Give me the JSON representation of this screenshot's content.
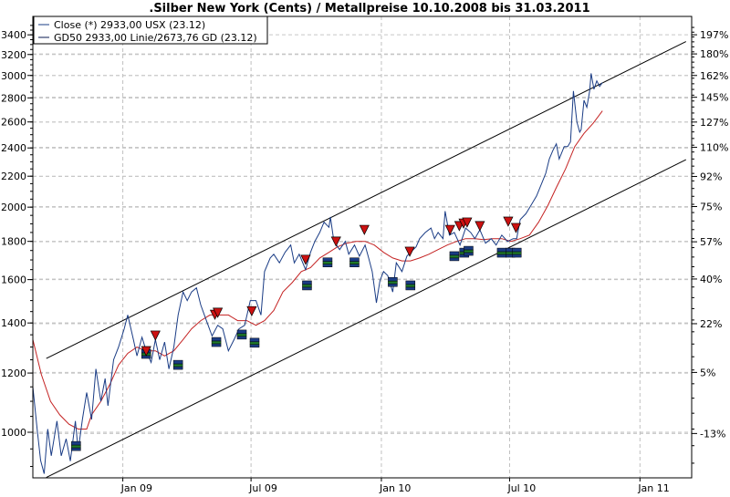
{
  "chart_data": {
    "type": "line",
    "title": ".Silber New York (Cents) / Metallpreise 10.10.2008 bis 31.03.2011",
    "x_unit": "days since 2008-12-11",
    "xlim": [
      -106,
      824
    ],
    "y_scale": "log",
    "ylim": [
      850,
      3550
    ],
    "grid": true,
    "legend_position": "top-left",
    "legend": [
      "Close (*) 2933,00 USX (23.12)",
      "GD50 2933,00 Linie/2673,76 GD (23.12)"
    ],
    "x_ticks": [
      {
        "x": 21,
        "label": "Jan 09"
      },
      {
        "x": 202,
        "label": "Jul 09"
      },
      {
        "x": 386,
        "label": "Jan 10"
      },
      {
        "x": 567,
        "label": "Jul 10"
      },
      {
        "x": 751,
        "label": "Jan 11"
      }
    ],
    "y_ticks": [
      1000,
      1200,
      1400,
      1600,
      1800,
      2000,
      2200,
      2400,
      2600,
      2800,
      3000,
      3200,
      3400
    ],
    "y_tick_labels": [
      "1000",
      "1200",
      "1400",
      "1600",
      "1800",
      "2000",
      "2200",
      "2400",
      "2600",
      "2800",
      "3000",
      "3200",
      "3400"
    ],
    "percent_base": 1145,
    "percent_ticks": [
      -13,
      5,
      22,
      40,
      57,
      75,
      92,
      110,
      127,
      145,
      162,
      180,
      197
    ],
    "percent_labels": [
      "-13%",
      "5%",
      "22%",
      "40%",
      "57%",
      "75%",
      "92%",
      "110%",
      "127%",
      "145%",
      "162%",
      "180%",
      "197%"
    ],
    "series": [
      {
        "name": "Close",
        "color": "#1a3c85",
        "x": [
          -106,
          -100,
          -95,
          -90,
          -85,
          -80,
          -72,
          -66,
          -59,
          -53,
          -46,
          -42,
          -36,
          -30,
          -23,
          -17,
          -10,
          -4,
          0,
          8,
          15,
          23,
          28,
          36,
          41,
          48,
          54,
          61,
          67,
          73,
          80,
          86,
          93,
          99,
          106,
          112,
          118,
          125,
          131,
          139,
          147,
          155,
          162,
          170,
          178,
          185,
          193,
          201,
          209,
          216,
          221,
          229,
          234,
          242,
          250,
          258,
          263,
          270,
          279,
          286,
          292,
          299,
          305,
          312,
          314,
          319,
          327,
          335,
          340,
          348,
          355,
          363,
          368,
          373,
          379,
          384,
          389,
          395,
          402,
          407,
          415,
          422,
          427,
          435,
          440,
          448,
          456,
          461,
          466,
          473,
          476,
          482,
          489,
          497,
          505,
          512,
          518,
          525,
          533,
          541,
          548,
          556,
          564,
          572,
          577,
          582,
          590,
          597,
          605,
          613,
          618,
          623,
          628,
          633,
          637,
          644,
          649,
          653,
          657,
          662,
          666,
          668,
          672,
          676,
          680,
          682,
          686,
          690,
          694,
          698
        ],
        "values": [
          1150,
          1010,
          917,
          880,
          1010,
          930,
          1035,
          930,
          980,
          915,
          1035,
          945,
          1040,
          1130,
          1040,
          1215,
          1100,
          1180,
          1085,
          1250,
          1300,
          1375,
          1435,
          1330,
          1265,
          1340,
          1285,
          1240,
          1330,
          1250,
          1320,
          1215,
          1300,
          1435,
          1540,
          1500,
          1540,
          1560,
          1480,
          1410,
          1345,
          1390,
          1375,
          1285,
          1330,
          1375,
          1390,
          1500,
          1500,
          1435,
          1640,
          1710,
          1730,
          1685,
          1740,
          1780,
          1685,
          1730,
          1650,
          1740,
          1800,
          1850,
          1910,
          1880,
          1940,
          1800,
          1755,
          1800,
          1730,
          1780,
          1720,
          1780,
          1710,
          1640,
          1490,
          1595,
          1640,
          1620,
          1540,
          1685,
          1640,
          1720,
          1740,
          1770,
          1815,
          1850,
          1875,
          1815,
          1850,
          1815,
          1975,
          1835,
          1850,
          1780,
          1875,
          1850,
          1815,
          1865,
          1790,
          1815,
          1780,
          1835,
          1800,
          1815,
          1815,
          1925,
          1960,
          2010,
          2070,
          2160,
          2220,
          2320,
          2380,
          2430,
          2320,
          2410,
          2410,
          2445,
          2860,
          2600,
          2520,
          2540,
          2780,
          2720,
          2860,
          3020,
          2875,
          2950,
          2900,
          2935
        ]
      },
      {
        "name": "GD50",
        "color": "#c42222",
        "x": [
          -106,
          -94,
          -81,
          -68,
          -55,
          -42,
          -30,
          -23,
          -10,
          3,
          15,
          28,
          41,
          54,
          67,
          80,
          93,
          106,
          118,
          131,
          144,
          157,
          170,
          183,
          196,
          209,
          221,
          234,
          247,
          260,
          273,
          286,
          299,
          312,
          324,
          337,
          350,
          363,
          376,
          389,
          402,
          415,
          427,
          440,
          453,
          466,
          479,
          492,
          505,
          518,
          530,
          543,
          556,
          569,
          582,
          595,
          608,
          621,
          633,
          646,
          659,
          672,
          685,
          698
        ],
        "values": [
          1330,
          1195,
          1100,
          1055,
          1025,
          1010,
          1010,
          1055,
          1100,
          1160,
          1230,
          1275,
          1300,
          1285,
          1285,
          1265,
          1285,
          1330,
          1375,
          1410,
          1435,
          1435,
          1435,
          1410,
          1410,
          1390,
          1410,
          1455,
          1540,
          1585,
          1640,
          1660,
          1710,
          1740,
          1770,
          1790,
          1800,
          1800,
          1780,
          1740,
          1710,
          1695,
          1695,
          1710,
          1730,
          1755,
          1780,
          1800,
          1815,
          1815,
          1810,
          1815,
          1815,
          1800,
          1815,
          1835,
          1910,
          2010,
          2125,
          2250,
          2410,
          2510,
          2590,
          2690
        ]
      }
    ],
    "trend_channel": [
      {
        "name": "upper",
        "x": [
          -87,
          816
        ],
        "values": [
          1255,
          3330
        ]
      },
      {
        "name": "lower",
        "x": [
          -87,
          816
        ],
        "values": [
          870,
          2315
        ]
      }
    ],
    "signals": {
      "sell": {
        "color": "#cc1111",
        "x": [
          54,
          67,
          151,
          155,
          203,
          279,
          322,
          362,
          426,
          483,
          496,
          502,
          507,
          525,
          565,
          576
        ],
        "values": [
          1284,
          1347,
          1436,
          1445,
          1452,
          1701,
          1799,
          1865,
          1744,
          1865,
          1887,
          1902,
          1908,
          1887,
          1913,
          1876
        ]
      },
      "buy": {
        "color": "#1a3c85",
        "x": [
          -45,
          54,
          99,
          153,
          189,
          207,
          281,
          310,
          348,
          402,
          427,
          489,
          503,
          509,
          556,
          568,
          577
        ],
        "values": [
          972,
          1291,
          1248,
          1339,
          1370,
          1336,
          1594,
          1711,
          1711,
          1611,
          1594,
          1744,
          1763,
          1773,
          1763,
          1763,
          1763
        ]
      }
    }
  }
}
